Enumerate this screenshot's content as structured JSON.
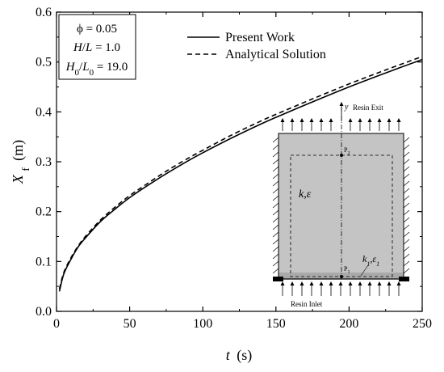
{
  "chart_data": {
    "type": "line",
    "title": "",
    "xlabel": "t (s)",
    "xlabel_italic": "t",
    "xlabel_unit": "(s)",
    "ylabel": "Xf (m)",
    "ylabel_main": "X",
    "ylabel_sub": "f",
    "ylabel_unit": "(m)",
    "xlim": [
      0,
      250
    ],
    "ylim": [
      0.0,
      0.6
    ],
    "grid": false,
    "legend_position": "top-center",
    "x_ticks": [
      0,
      50,
      100,
      150,
      200,
      250
    ],
    "x_tick_labels": [
      "0",
      "50",
      "100",
      "150",
      "200",
      "250"
    ],
    "y_ticks": [
      0.0,
      0.1,
      0.2,
      0.3,
      0.4,
      0.5,
      0.6
    ],
    "y_tick_labels": [
      "0.0",
      "0.1",
      "0.2",
      "0.3",
      "0.4",
      "0.5",
      "0.6"
    ],
    "series": [
      {
        "name": "Present Work",
        "style": "solid",
        "color": "#000000",
        "x": [
          2,
          5,
          10,
          15,
          20,
          30,
          40,
          50,
          60,
          75,
          90,
          100,
          120,
          140,
          150,
          175,
          200,
          225,
          250
        ],
        "y": [
          0.04,
          0.075,
          0.105,
          0.13,
          0.148,
          0.18,
          0.205,
          0.228,
          0.248,
          0.276,
          0.302,
          0.318,
          0.348,
          0.376,
          0.389,
          0.42,
          0.45,
          0.478,
          0.505
        ]
      },
      {
        "name": "Analytical Solution",
        "style": "dashed",
        "color": "#000000",
        "x": [
          2,
          5,
          10,
          15,
          20,
          30,
          40,
          50,
          60,
          75,
          90,
          100,
          120,
          140,
          150,
          175,
          200,
          225,
          250
        ],
        "y": [
          0.045,
          0.078,
          0.108,
          0.132,
          0.151,
          0.183,
          0.209,
          0.232,
          0.252,
          0.281,
          0.307,
          0.323,
          0.354,
          0.382,
          0.395,
          0.426,
          0.456,
          0.484,
          0.511
        ]
      }
    ],
    "annotation_box": {
      "lines": [
        {
          "main": "ϕ = 0.05"
        },
        {
          "h": "H",
          "slash": "/",
          "l": "L",
          "rest": " = 1.0"
        },
        {
          "h": "H",
          "hsub": "0",
          "slash": "/",
          "l": "L",
          "lsub": "0",
          "rest": " = 19.0"
        }
      ]
    },
    "inset": {
      "resin_exit": "Resin Exit",
      "resin_inlet": "Resin Inlet",
      "axis_y": "y",
      "p2": "P",
      "p2_sub": "2",
      "p1": "P",
      "p1_sub": "1",
      "k_eps": "k,ε",
      "k": "k",
      "k1_sub": "1",
      "eps": "ε",
      "eps1_sub": "1",
      "comma": ","
    }
  }
}
